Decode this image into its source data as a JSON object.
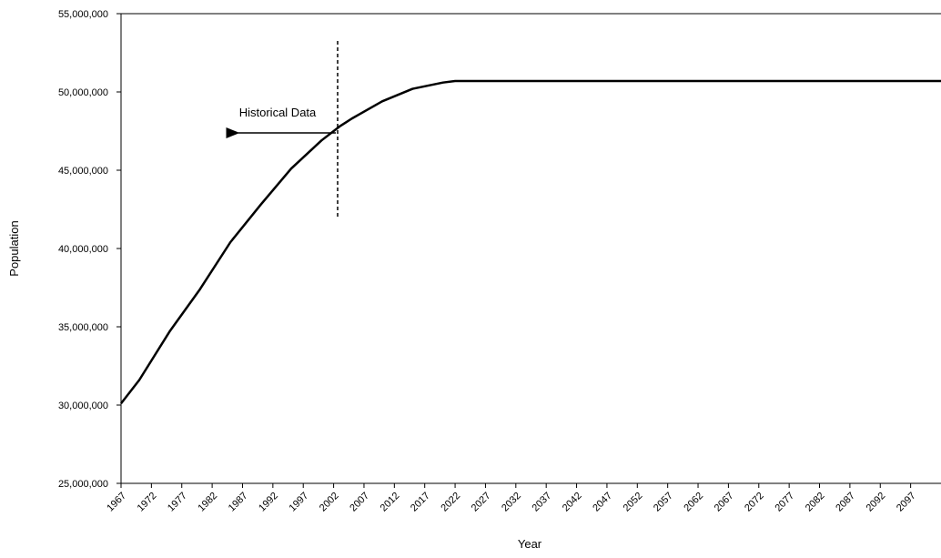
{
  "chart_data": {
    "type": "line",
    "x_label": "Year",
    "y_label": "Population",
    "annotation": "Historical Data",
    "x": [
      1967,
      1970,
      1975,
      1980,
      1985,
      1990,
      1995,
      2000,
      2003,
      2005,
      2010,
      2015,
      2020,
      2022,
      2102
    ],
    "series": [
      {
        "name": "Population",
        "color": "#000000",
        "values": [
          30100000,
          31600000,
          34700000,
          37400000,
          40400000,
          42800000,
          45100000,
          46900000,
          47800000,
          48300000,
          49400000,
          50200000,
          50600000,
          50700000,
          50700000
        ]
      }
    ],
    "xlim": [
      1967,
      2102
    ],
    "xticks": [
      1967,
      1972,
      1977,
      1982,
      1987,
      1992,
      1997,
      2002,
      2007,
      2012,
      2017,
      2022,
      2027,
      2032,
      2037,
      2042,
      2047,
      2052,
      2057,
      2062,
      2067,
      2072,
      2077,
      2082,
      2087,
      2092,
      2097
    ],
    "ylim": [
      25000000,
      55000000
    ],
    "yticks": [
      {
        "value": 25000000,
        "label": "25,000,000"
      },
      {
        "value": 30000000,
        "label": "30,000,000"
      },
      {
        "value": 35000000,
        "label": "35,000,000"
      },
      {
        "value": 40000000,
        "label": "40,000,000"
      },
      {
        "value": 45000000,
        "label": "45,000,000"
      },
      {
        "value": 50000000,
        "label": "50,000,000"
      },
      {
        "value": 55000000,
        "label": "55,000,000"
      }
    ],
    "grid": false
  }
}
